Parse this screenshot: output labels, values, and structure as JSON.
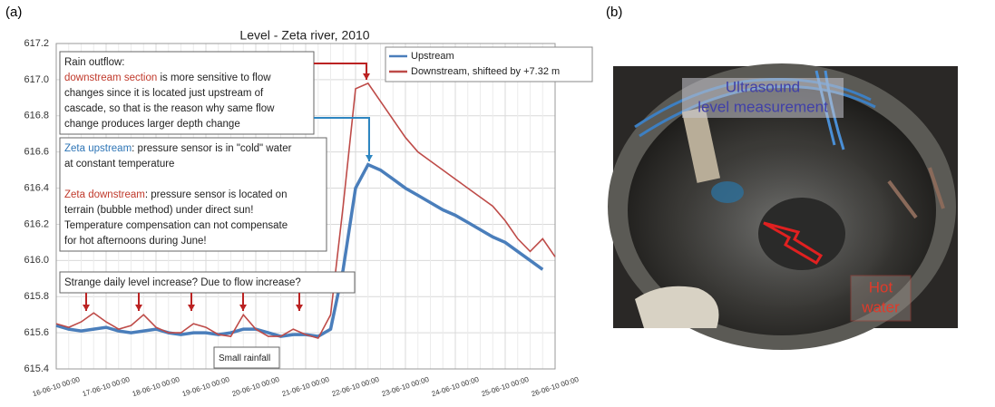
{
  "chart_data": {
    "type": "line",
    "panel_label": "(a)",
    "title": "Level - Zeta river, 2010",
    "x": [
      "16-06-10 00:00",
      "16-06-10 06:00",
      "16-06-10 12:00",
      "16-06-10 18:00",
      "17-06-10 00:00",
      "17-06-10 06:00",
      "17-06-10 12:00",
      "17-06-10 18:00",
      "18-06-10 00:00",
      "18-06-10 06:00",
      "18-06-10 12:00",
      "18-06-10 18:00",
      "19-06-10 00:00",
      "19-06-10 06:00",
      "19-06-10 12:00",
      "19-06-10 18:00",
      "20-06-10 00:00",
      "20-06-10 06:00",
      "20-06-10 12:00",
      "20-06-10 18:00",
      "21-06-10 00:00",
      "21-06-10 06:00",
      "21-06-10 12:00",
      "21-06-10 18:00",
      "22-06-10 00:00",
      "22-06-10 06:00",
      "22-06-10 12:00",
      "22-06-10 18:00",
      "23-06-10 00:00",
      "23-06-10 06:00",
      "23-06-10 12:00",
      "23-06-10 18:00",
      "24-06-10 00:00",
      "24-06-10 06:00",
      "24-06-10 12:00",
      "24-06-10 18:00",
      "25-06-10 00:00",
      "25-06-10 06:00",
      "25-06-10 12:00",
      "25-06-10 18:00",
      "26-06-10 00:00"
    ],
    "series": [
      {
        "name": "Upstream",
        "color": "#4a7ebb",
        "values": [
          615.64,
          615.62,
          615.61,
          615.62,
          615.63,
          615.61,
          615.6,
          615.61,
          615.62,
          615.6,
          615.59,
          615.6,
          615.6,
          615.59,
          615.6,
          615.62,
          615.62,
          615.6,
          615.58,
          615.59,
          615.59,
          615.58,
          615.62,
          615.95,
          616.4,
          616.53,
          616.5,
          616.45,
          616.4,
          616.36,
          616.32,
          616.28,
          616.25,
          616.21,
          616.17,
          616.13,
          616.1,
          616.05,
          616.0,
          615.95,
          null
        ]
      },
      {
        "name": "Downstream, shifteed by +7.32 m",
        "color": "#be4b48",
        "values": [
          615.65,
          615.63,
          615.66,
          615.71,
          615.66,
          615.62,
          615.64,
          615.7,
          615.63,
          615.6,
          615.6,
          615.65,
          615.63,
          615.59,
          615.58,
          615.7,
          615.62,
          615.58,
          615.58,
          615.62,
          615.59,
          615.57,
          615.7,
          616.3,
          616.95,
          616.98,
          616.88,
          616.78,
          616.68,
          616.6,
          616.55,
          616.5,
          616.45,
          616.4,
          616.35,
          616.3,
          616.22,
          616.12,
          616.05,
          616.12,
          616.02
        ]
      }
    ],
    "xticks": [
      "16-06-10 00:00",
      "17-06-10 00:00",
      "18-06-10 00:00",
      "19-06-10 00:00",
      "20-06-10 00:00",
      "21-06-10 00:00",
      "22-06-10 00:00",
      "23-06-10 00:00",
      "24-06-10 00:00",
      "25-06-10 00:00",
      "26-06-10 00:00"
    ],
    "ylim": [
      615.4,
      617.2
    ],
    "yticks": [
      615.4,
      615.6,
      615.8,
      {
        "value": 616,
        "label": "616.0"
      },
      616.2,
      616.4,
      616.6,
      616.8,
      {
        "value": 617,
        "label": "617.0"
      },
      617.2
    ],
    "grid": true,
    "legend": "top-right",
    "annotations": [
      {
        "lines": [
          [
            {
              "text": "Rain outflow:"
            }
          ],
          [
            {
              "text": "downstream section",
              "color": "#c0392b"
            },
            {
              "text": " is more sensitive to flow"
            }
          ],
          [
            {
              "text": "changes since it is located just upstream of"
            }
          ],
          [
            {
              "text": "cascade, so that is the reason why same flow"
            }
          ],
          [
            {
              "text": "change produces larger depth change"
            }
          ]
        ]
      },
      {
        "lines": [
          [
            {
              "text": "Zeta upstream",
              "color": "#2e75b6"
            },
            {
              "text": ": pressure sensor is in \"cold\" water"
            }
          ],
          [
            {
              "text": "at constant temperature"
            }
          ],
          [
            {
              "text": "Zeta downstream",
              "color": "#c0392b"
            },
            {
              "text": ": pressure sensor is located on"
            }
          ],
          [
            {
              "text": "terrain (bubble method) under direct sun!"
            }
          ],
          [
            {
              "text": "Temperature compensation can not compensate"
            }
          ],
          [
            {
              "text": "for hot afternoons during June!"
            }
          ]
        ]
      },
      {
        "lines": [
          [
            {
              "text": "Strange daily level increase? Due to flow increase?"
            }
          ]
        ]
      },
      {
        "lines": [
          [
            {
              "text": "Small rainfall"
            }
          ]
        ]
      }
    ]
  },
  "photo": {
    "panel_label": "(b)",
    "labels": [
      [
        "Ultrasound",
        "level measurement"
      ],
      [
        "Hot",
        "water"
      ]
    ]
  }
}
